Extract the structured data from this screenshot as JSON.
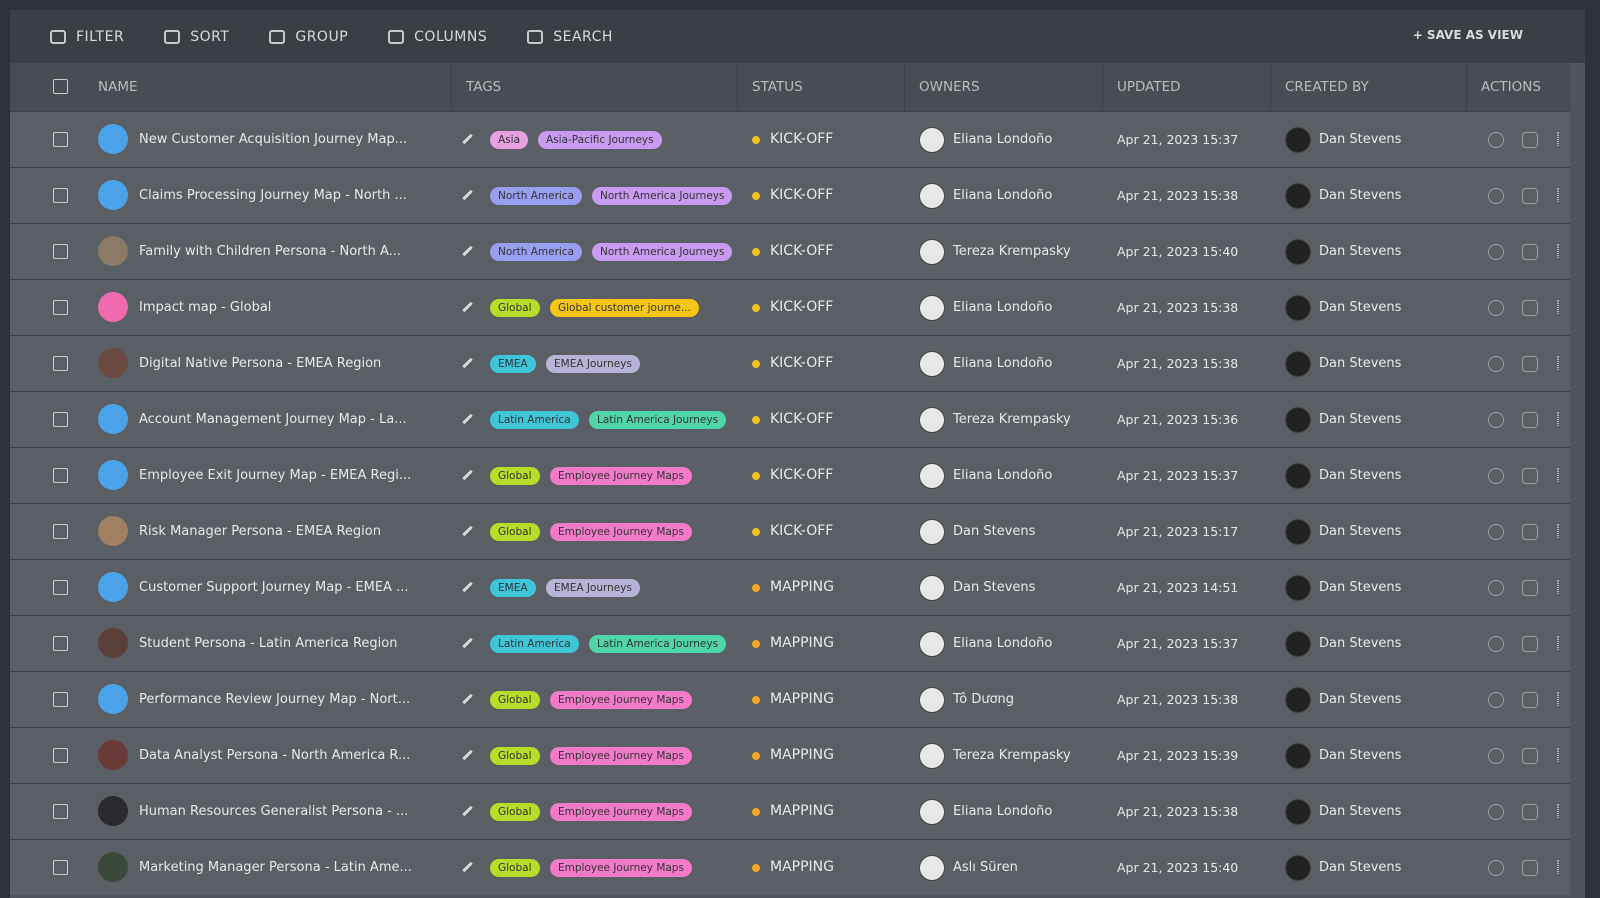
{
  "toolbar": {
    "items": [
      "FILTER",
      "SORT",
      "GROUP",
      "COLUMNS",
      "SEARCH"
    ],
    "save": "SAVE AS VIEW"
  },
  "table": {
    "columns": [
      "NAME",
      "TAGS",
      "STATUS",
      "OWNERS",
      "UPDATED",
      "CREATED BY",
      "ACTIONS"
    ],
    "rows": [
      {
        "name": "New Customer Acquisition Journey Map...",
        "avatar_color": "#4aa3e8",
        "tags": [
          {
            "label": "Asia",
            "color": "#e8a0e0"
          },
          {
            "label": "Asia-Pacific Journeys",
            "color": "#c89bf0"
          }
        ],
        "status": {
          "label": "KICK-OFF",
          "color": "#f2c21b"
        },
        "owner": "Eliana Londoño",
        "updated": "Apr 21, 2023 15:37",
        "created_by": "Dan Stevens"
      },
      {
        "name": "Claims Processing Journey Map - North ...",
        "avatar_color": "#4aa3e8",
        "tags": [
          {
            "label": "North America",
            "color": "#9a9ef0"
          },
          {
            "label": "North America Journeys",
            "color": "#c89bf0"
          }
        ],
        "status": {
          "label": "KICK-OFF",
          "color": "#f2c21b"
        },
        "owner": "Eliana Londoño",
        "updated": "Apr 21, 2023 15:38",
        "created_by": "Dan Stevens"
      },
      {
        "name": "Family with Children Persona - North A...",
        "avatar_color": "#8a7a66",
        "tags": [
          {
            "label": "North America",
            "color": "#9a9ef0"
          },
          {
            "label": "North America Journeys",
            "color": "#c89bf0"
          }
        ],
        "status": {
          "label": "KICK-OFF",
          "color": "#f2c21b"
        },
        "owner": "Tereza Krempasky",
        "updated": "Apr 21, 2023 15:40",
        "created_by": "Dan Stevens"
      },
      {
        "name": "Impact map - Global",
        "avatar_color": "#f06ab0",
        "tags": [
          {
            "label": "Global",
            "color": "#b6dd2a"
          },
          {
            "label": "Global customer journe...",
            "color": "#f5c518"
          }
        ],
        "status": {
          "label": "KICK-OFF",
          "color": "#f2c21b"
        },
        "owner": "Eliana Londoño",
        "updated": "Apr 21, 2023 15:38",
        "created_by": "Dan Stevens"
      },
      {
        "name": "Digital Native Persona - EMEA Region",
        "avatar_color": "#6a4a40",
        "tags": [
          {
            "label": "EMEA",
            "color": "#3cc6d8"
          },
          {
            "label": "EMEA Journeys",
            "color": "#b9b3d8"
          }
        ],
        "status": {
          "label": "KICK-OFF",
          "color": "#f2c21b"
        },
        "owner": "Eliana Londoño",
        "updated": "Apr 21, 2023 15:38",
        "created_by": "Dan Stevens"
      },
      {
        "name": "Account Management Journey Map - La...",
        "avatar_color": "#4aa3e8",
        "tags": [
          {
            "label": "Latin America",
            "color": "#3cc6d8"
          },
          {
            "label": "Latin America Journeys",
            "color": "#4fd6a8"
          }
        ],
        "status": {
          "label": "KICK-OFF",
          "color": "#f2c21b"
        },
        "owner": "Tereza Krempasky",
        "updated": "Apr 21, 2023 15:36",
        "created_by": "Dan Stevens"
      },
      {
        "name": "Employee Exit Journey Map - EMEA Regi...",
        "avatar_color": "#4aa3e8",
        "tags": [
          {
            "label": "Global",
            "color": "#b6dd2a"
          },
          {
            "label": "Employee Journey Maps",
            "color": "#f27ac8"
          }
        ],
        "status": {
          "label": "KICK-OFF",
          "color": "#f2c21b"
        },
        "owner": "Eliana Londoño",
        "updated": "Apr 21, 2023 15:37",
        "created_by": "Dan Stevens"
      },
      {
        "name": "Risk Manager Persona - EMEA Region",
        "avatar_color": "#a08060",
        "tags": [
          {
            "label": "Global",
            "color": "#b6dd2a"
          },
          {
            "label": "Employee Journey Maps",
            "color": "#f27ac8"
          }
        ],
        "status": {
          "label": "KICK-OFF",
          "color": "#f2c21b"
        },
        "owner": "Dan Stevens",
        "updated": "Apr 21, 2023 15:17",
        "created_by": "Dan Stevens"
      },
      {
        "name": "Customer Support Journey Map - EMEA ...",
        "avatar_color": "#4aa3e8",
        "tags": [
          {
            "label": "EMEA",
            "color": "#3cc6d8"
          },
          {
            "label": "EMEA Journeys",
            "color": "#b9b3d8"
          }
        ],
        "status": {
          "label": "MAPPING",
          "color": "#f5a623"
        },
        "owner": "Dan Stevens",
        "updated": "Apr 21, 2023 14:51",
        "created_by": "Dan Stevens"
      },
      {
        "name": "Student Persona - Latin America Region",
        "avatar_color": "#5a4038",
        "tags": [
          {
            "label": "Latin America",
            "color": "#3cc6d8"
          },
          {
            "label": "Latin America Journeys",
            "color": "#4fd6a8"
          }
        ],
        "status": {
          "label": "MAPPING",
          "color": "#f5a623"
        },
        "owner": "Eliana Londoño",
        "updated": "Apr 21, 2023 15:37",
        "created_by": "Dan Stevens"
      },
      {
        "name": "Performance Review Journey Map - Nort...",
        "avatar_color": "#4aa3e8",
        "tags": [
          {
            "label": "Global",
            "color": "#b6dd2a"
          },
          {
            "label": "Employee Journey Maps",
            "color": "#f27ac8"
          }
        ],
        "status": {
          "label": "MAPPING",
          "color": "#f5a623"
        },
        "owner": "Tô Dương",
        "updated": "Apr 21, 2023 15:38",
        "created_by": "Dan Stevens"
      },
      {
        "name": "Data Analyst Persona - North America R...",
        "avatar_color": "#6a3a38",
        "tags": [
          {
            "label": "Global",
            "color": "#b6dd2a"
          },
          {
            "label": "Employee Journey Maps",
            "color": "#f27ac8"
          }
        ],
        "status": {
          "label": "MAPPING",
          "color": "#f5a623"
        },
        "owner": "Tereza Krempasky",
        "updated": "Apr 21, 2023 15:39",
        "created_by": "Dan Stevens"
      },
      {
        "name": "Human Resources Generalist Persona - ...",
        "avatar_color": "#2a2a30",
        "tags": [
          {
            "label": "Global",
            "color": "#b6dd2a"
          },
          {
            "label": "Employee Journey Maps",
            "color": "#f27ac8"
          }
        ],
        "status": {
          "label": "MAPPING",
          "color": "#f5a623"
        },
        "owner": "Eliana Londoño",
        "updated": "Apr 21, 2023 15:38",
        "created_by": "Dan Stevens"
      },
      {
        "name": "Marketing Manager Persona - Latin Ame...",
        "avatar_color": "#3a4a3a",
        "tags": [
          {
            "label": "Global",
            "color": "#b6dd2a"
          },
          {
            "label": "Employee Journey Maps",
            "color": "#f27ac8"
          }
        ],
        "status": {
          "label": "MAPPING",
          "color": "#f5a623"
        },
        "owner": "Aslı Süren",
        "updated": "Apr 21, 2023 15:40",
        "created_by": "Dan Stevens"
      }
    ]
  }
}
